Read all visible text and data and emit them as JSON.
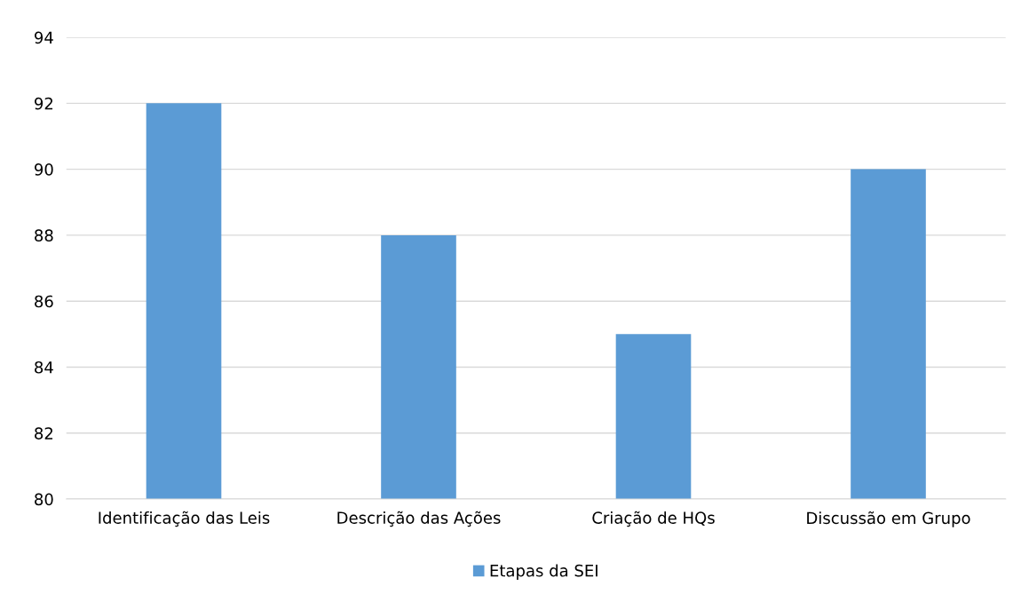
{
  "chart_data": {
    "type": "bar",
    "categories": [
      "Identificação das Leis",
      "Descrição das Ações",
      "Criação de HQs",
      "Discussão em Grupo"
    ],
    "series": [
      {
        "name": "Etapas da SEI",
        "color": "#5b9bd5",
        "values": [
          92,
          88,
          85,
          90
        ]
      }
    ],
    "ylim": [
      80,
      94
    ],
    "yticks": [
      80,
      82,
      84,
      86,
      88,
      90,
      92,
      94
    ],
    "grid": "y",
    "legend": "bottom"
  }
}
